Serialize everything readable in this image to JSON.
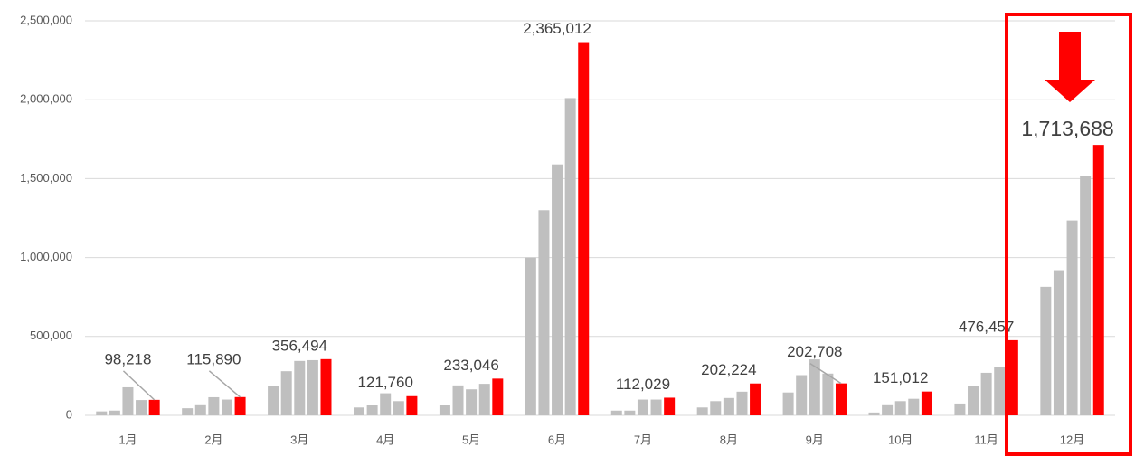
{
  "chart_data": {
    "type": "bar",
    "categories": [
      "1月",
      "2月",
      "3月",
      "4月",
      "5月",
      "6月",
      "7月",
      "8月",
      "9月",
      "10月",
      "11月",
      "12月"
    ],
    "series": [
      {
        "color": "#bfbfbf",
        "values": [
          25000,
          45000,
          185000,
          50000,
          65000,
          1000000,
          30000,
          50000,
          145000,
          18000,
          75000,
          815000
        ]
      },
      {
        "color": "#bfbfbf",
        "values": [
          30000,
          70000,
          280000,
          65000,
          190000,
          1300000,
          30000,
          90000,
          255000,
          70000,
          185000,
          920000
        ]
      },
      {
        "color": "#bfbfbf",
        "values": [
          178000,
          115000,
          345000,
          140000,
          165000,
          1590000,
          100000,
          110000,
          355000,
          90000,
          270000,
          1235000
        ]
      },
      {
        "color": "#bfbfbf",
        "values": [
          97000,
          100000,
          350000,
          90000,
          200000,
          2010000,
          100000,
          150000,
          265000,
          105000,
          305000,
          1515000
        ]
      },
      {
        "color": "#ff0000",
        "values": [
          98218,
          115890,
          356494,
          121760,
          233046,
          2365012,
          112029,
          202224,
          202708,
          151012,
          476457,
          1713688
        ],
        "value_labels": [
          "98,218",
          "115,890",
          "356,494",
          "121,760",
          "233,046",
          "2,365,012",
          "112,029",
          "202,224",
          "202,708",
          "151,012",
          "476,457",
          "1,713,688"
        ]
      }
    ],
    "ylim": [
      0,
      2500000
    ],
    "yticks": [
      0,
      {
        "value": 500000,
        "label": "500,000"
      },
      {
        "value": 1000000,
        "label": "1,000,000"
      },
      {
        "value": 1500000,
        "label": "1,500,000"
      },
      {
        "value": 2000000,
        "label": "2,000,000"
      },
      {
        "value": 2500000,
        "label": "2,500,000"
      }
    ],
    "grid": true
  }
}
